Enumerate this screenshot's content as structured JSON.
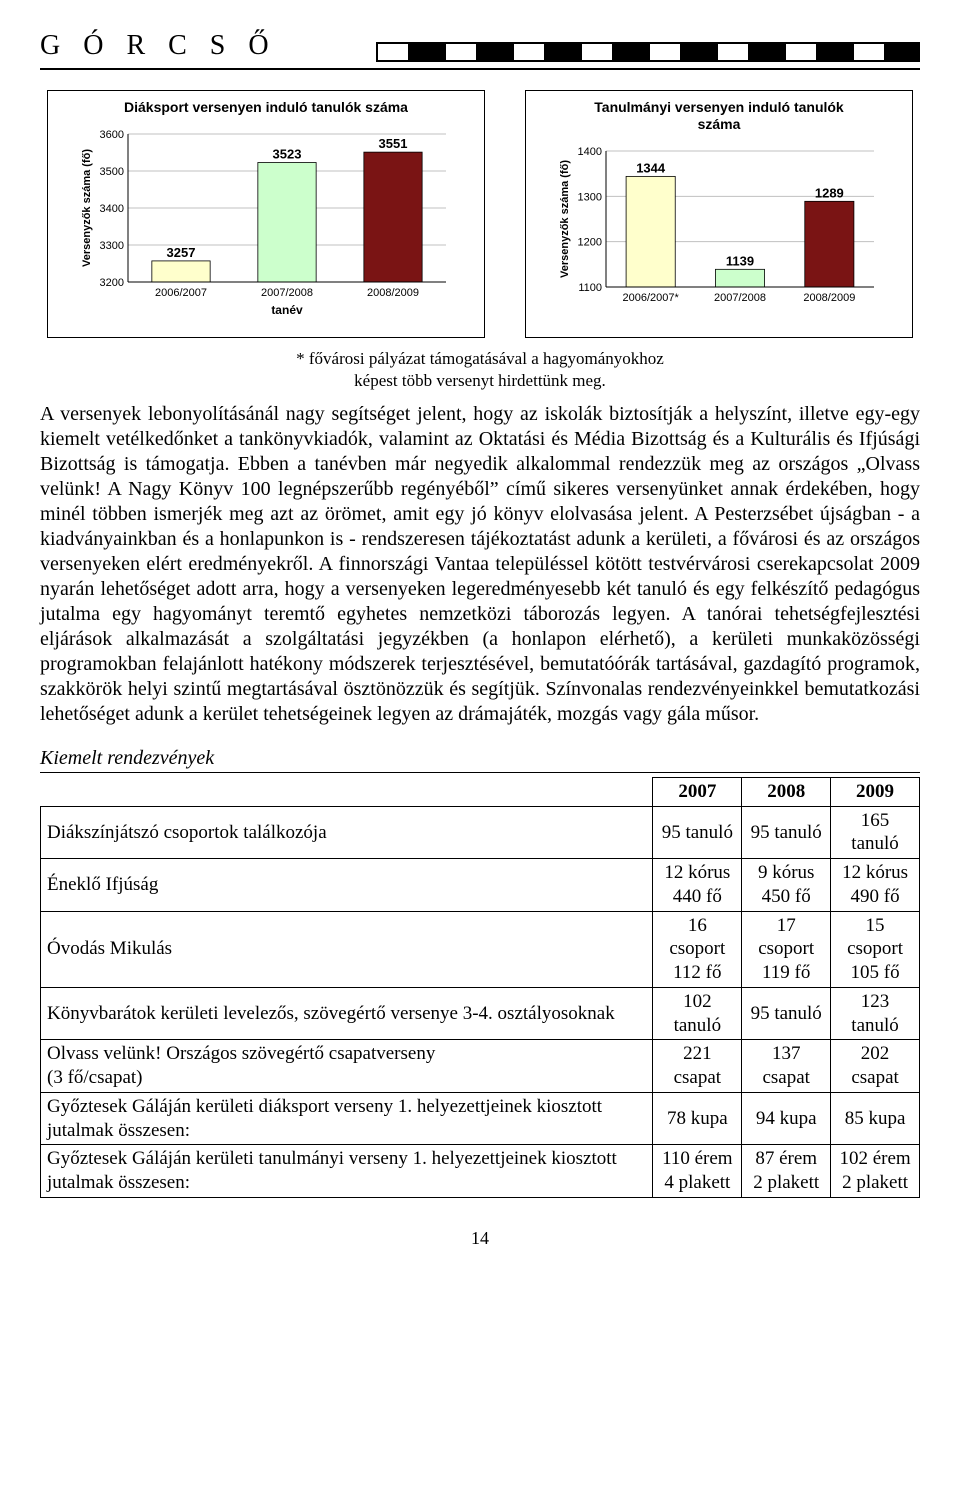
{
  "header": {
    "title": "G Ó R C S Ő"
  },
  "chart1": {
    "title": "Diáksport versenyen induló tanulók száma",
    "y_label": "Versenyzők száma (fő)",
    "x_label": "tanév",
    "categories": [
      "2006/2007",
      "2007/2008",
      "2008/2009"
    ],
    "values": [
      3257,
      3523,
      3551
    ],
    "bar_colors": [
      "#ffffcc",
      "#ccffcc",
      "#7a1414"
    ],
    "label_colors": [
      "#000000",
      "#000000",
      "#000000"
    ],
    "ylim": [
      3200,
      3600
    ],
    "ytick_step": 100,
    "grid_color": "#c0c0c0",
    "background_color": "#ffffff",
    "title_fontsize": 14,
    "tick_fontsize": 11
  },
  "chart2": {
    "title_line1": "Tanulmányi versenyen induló tanulók",
    "title_line2": "száma",
    "y_label": "Versenyzők száma (fő)",
    "categories": [
      "2006/2007*",
      "2007/2008",
      "2008/2009"
    ],
    "values": [
      1344,
      1139,
      1289
    ],
    "bar_colors": [
      "#ffffcc",
      "#ccffcc",
      "#7a1414"
    ],
    "ylim": [
      1100,
      1400
    ],
    "ytick_step": 100,
    "grid_color": "#c0c0c0",
    "background_color": "#ffffff",
    "title_fontsize": 14,
    "tick_fontsize": 11
  },
  "footnote_line1": "* fővárosi pályázat támogatásával a hagyományokhoz",
  "footnote_line2": "képest több versenyt hirdettünk meg.",
  "body_text": "A versenyek lebonyolításánál nagy segítséget jelent, hogy az iskolák biztosítják a helyszínt, illetve egy-egy kiemelt vetélkedőnket a tankönyvkiadók, valamint az Oktatási és Média Bizottság és a Kulturális és Ifjúsági Bizottság is támogatja. Ebben a tanévben már negyedik alkalommal rendezzük meg az országos „Olvass velünk! A Nagy Könyv 100 legnépszerűbb regényéből” című sikeres versenyünket annak érdekében, hogy minél többen ismerjék meg azt az örömet, amit egy jó könyv elolvasása jelent. A Pesterzsébet újságban - a kiadványainkban és a honlapunkon is - rendszeresen tájékoztatást adunk a kerületi, a fővárosi és az országos versenyeken elért eredményekről. A finnországi Vantaa településsel kötött testvérvárosi cserekapcsolat 2009 nyarán lehetőséget adott arra, hogy a versenyeken legeredményesebb két tanuló és egy felkészítő pedagógus jutalma egy hagyományt teremtő egyhetes nemzetközi táborozás legyen. A tanórai tehetségfejlesztési eljárások alkalmazását a szolgáltatási jegyzékben (a honlapon elérhető), a kerületi munkaközösségi programokban felajánlott hatékony módszerek terjesztésével, bemutatóórák tartásával, gazdagító programok, szakkörök helyi szintű megtartásával ösztönözzük és segítjük. Színvonalas rendezvényeinkkel bemutatkozási lehetőséget adunk a kerület tehetségeinek legyen az drámajáték, mozgás vagy gála műsor.",
  "section_heading": "Kiemelt rendezvények",
  "table": {
    "headers": [
      "2007",
      "2008",
      "2009"
    ],
    "rows": [
      {
        "label": "Diákszínjátszó csoportok találkozója",
        "cells": [
          "95 tanuló",
          "95 tanuló",
          "165 tanuló"
        ]
      },
      {
        "label": "Éneklő Ifjúság",
        "cells": [
          "12 kórus\n440 fő",
          "9 kórus\n450 fő",
          "12 kórus\n490 fő"
        ]
      },
      {
        "label": "Óvodás Mikulás",
        "cells": [
          "16 csoport\n112 fő",
          "17 csoport\n119 fő",
          "15 csoport\n105 fő"
        ]
      },
      {
        "label": "Könyvbarátok kerületi levelezős, szövegértő versenye 3-4. osztályosoknak",
        "cells": [
          "102 tanuló",
          "95 tanuló",
          "123 tanuló"
        ]
      },
      {
        "label": "Olvass velünk! Országos szövegértő csapatverseny\n(3 fő/csapat)",
        "cells": [
          "221 csapat",
          "137 csapat",
          "202 csapat"
        ]
      },
      {
        "label": "Győztesek Gáláján kerületi diáksport verseny 1. helyezettjeinek kiosztott jutalmak összesen:",
        "cells": [
          "78 kupa",
          "94 kupa",
          "85 kupa"
        ]
      },
      {
        "label": "Győztesek Gáláján kerületi tanulmányi verseny 1. helyezettjeinek kiosztott jutalmak összesen:",
        "cells": [
          "110 érem\n4 plakett",
          "87 érem\n2 plakett",
          "102 érem\n2 plakett"
        ]
      }
    ]
  },
  "page_number": "14"
}
